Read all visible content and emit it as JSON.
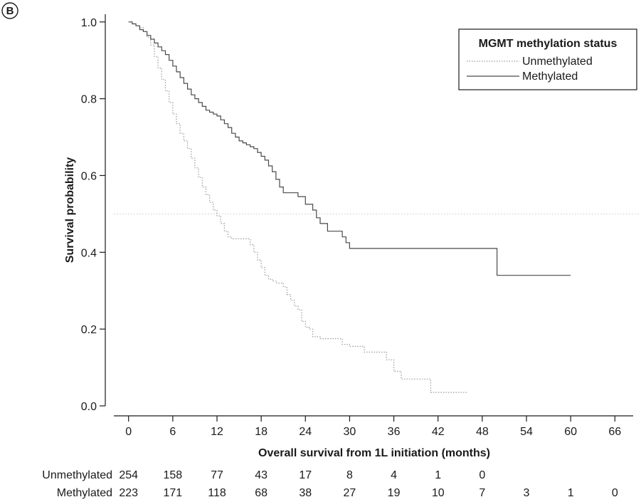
{
  "panel_label": "B",
  "chart_data": {
    "type": "line",
    "subtype": "kaplan-meier",
    "xlabel": "Overall survival from 1L initiation (months)",
    "ylabel": "Survival probability",
    "xlim": [
      -2,
      68
    ],
    "ylim": [
      0,
      1.02
    ],
    "x_ticks": [
      0,
      6,
      12,
      18,
      24,
      30,
      36,
      42,
      48,
      54,
      60,
      66
    ],
    "y_ticks": [
      0.0,
      0.2,
      0.4,
      0.6,
      0.8,
      1.0
    ],
    "y_tick_labels": [
      "0.0",
      "0.2",
      "0.4",
      "0.6",
      "0.8",
      "1.0"
    ],
    "grid": false,
    "median_reference_line": 0.5,
    "legend": {
      "title": "MGMT methylation status",
      "position": "top-right",
      "entries": [
        "Unmethylated",
        "Methylated"
      ]
    },
    "series": [
      {
        "name": "Unmethylated",
        "style": "dotted",
        "color": "#9a9a9a",
        "x": [
          0,
          0.5,
          1,
          1.5,
          2,
          2.5,
          3,
          3.5,
          4,
          4.5,
          5,
          5.5,
          6,
          6.5,
          7,
          7.5,
          8,
          8.5,
          9,
          9.5,
          10,
          10.5,
          11,
          11.5,
          12,
          12.5,
          13,
          13.5,
          14,
          15,
          16,
          16.5,
          17,
          17.5,
          18,
          18.5,
          19,
          19.5,
          20,
          21,
          21.5,
          22,
          22.5,
          23,
          23.5,
          24,
          24.5,
          25,
          26,
          27,
          28,
          29,
          30,
          31,
          32,
          33,
          34,
          35,
          35.5,
          36,
          37,
          38,
          39,
          40,
          41,
          42,
          43,
          44,
          45,
          46
        ],
        "y": [
          1.0,
          0.995,
          0.99,
          0.985,
          0.975,
          0.96,
          0.94,
          0.91,
          0.88,
          0.85,
          0.82,
          0.79,
          0.76,
          0.735,
          0.71,
          0.69,
          0.67,
          0.645,
          0.62,
          0.595,
          0.57,
          0.55,
          0.53,
          0.51,
          0.495,
          0.475,
          0.455,
          0.44,
          0.435,
          0.435,
          0.435,
          0.42,
          0.4,
          0.38,
          0.36,
          0.34,
          0.33,
          0.325,
          0.32,
          0.31,
          0.29,
          0.275,
          0.26,
          0.25,
          0.22,
          0.205,
          0.2,
          0.18,
          0.175,
          0.175,
          0.175,
          0.16,
          0.155,
          0.155,
          0.14,
          0.14,
          0.14,
          0.12,
          0.12,
          0.09,
          0.07,
          0.07,
          0.07,
          0.07,
          0.035,
          0.035,
          0.035,
          0.035,
          0.035,
          0.035
        ]
      },
      {
        "name": "Methylated",
        "style": "solid",
        "color": "#4a4a4a",
        "x": [
          0,
          0.5,
          1,
          1.5,
          2,
          2.5,
          3,
          3.5,
          4,
          4.5,
          5,
          5.5,
          6,
          6.5,
          7,
          7.5,
          8,
          8.5,
          9,
          9.5,
          10,
          10.5,
          11,
          11.5,
          12,
          12.5,
          13,
          13.5,
          14,
          14.5,
          15,
          15.5,
          16,
          16.5,
          17,
          17.5,
          18,
          18.5,
          19,
          19.5,
          20,
          20.5,
          21,
          22,
          23,
          24,
          25,
          25.5,
          26,
          27,
          28,
          29,
          29.5,
          30,
          31,
          34,
          38,
          42,
          46,
          50,
          55,
          60
        ],
        "y": [
          1.0,
          0.995,
          0.99,
          0.98,
          0.975,
          0.965,
          0.955,
          0.945,
          0.935,
          0.925,
          0.915,
          0.9,
          0.885,
          0.87,
          0.855,
          0.84,
          0.825,
          0.81,
          0.8,
          0.79,
          0.78,
          0.77,
          0.765,
          0.76,
          0.755,
          0.745,
          0.735,
          0.725,
          0.71,
          0.7,
          0.69,
          0.685,
          0.68,
          0.675,
          0.67,
          0.66,
          0.65,
          0.64,
          0.625,
          0.61,
          0.59,
          0.57,
          0.555,
          0.555,
          0.545,
          0.525,
          0.51,
          0.49,
          0.475,
          0.455,
          0.455,
          0.44,
          0.425,
          0.41,
          0.41,
          0.41,
          0.41,
          0.41,
          0.41,
          0.34,
          0.34,
          0.34
        ]
      }
    ]
  },
  "risk_table": {
    "rows": [
      {
        "label": "Unmethylated",
        "at_times": [
          0,
          6,
          12,
          18,
          24,
          30,
          36,
          42,
          48
        ],
        "counts": [
          "254",
          "158",
          "77",
          "43",
          "17",
          "8",
          "4",
          "1",
          "0"
        ]
      },
      {
        "label": "Methylated",
        "at_times": [
          0,
          6,
          12,
          18,
          24,
          30,
          36,
          42,
          48,
          54,
          60,
          66
        ],
        "counts": [
          "223",
          "171",
          "118",
          "68",
          "38",
          "27",
          "19",
          "10",
          "7",
          "3",
          "1",
          "0"
        ]
      }
    ]
  }
}
